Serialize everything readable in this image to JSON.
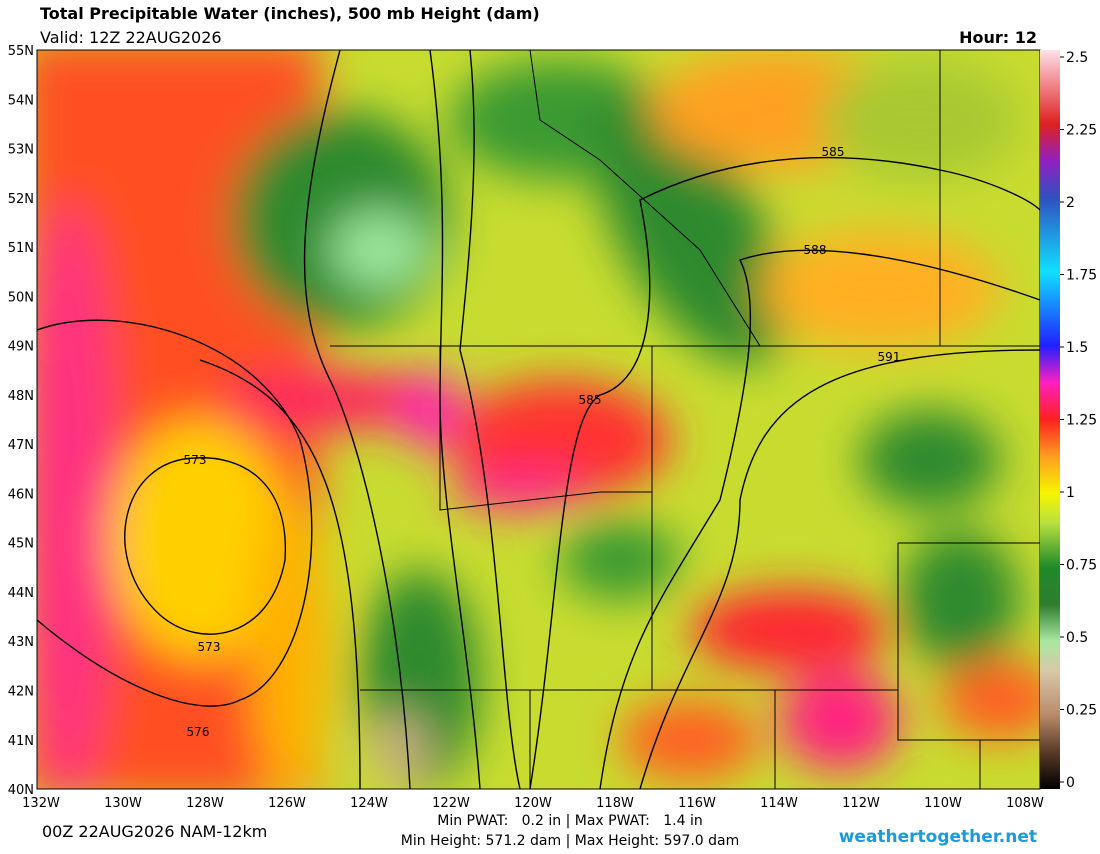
{
  "header": {
    "title": "Total Precipitable Water (inches), 500 mb Height (dam)",
    "valid": "Valid: 12Z 22AUG2026",
    "hour": "Hour: 12"
  },
  "map": {
    "lat_labels": [
      "55N",
      "54N",
      "53N",
      "52N",
      "51N",
      "50N",
      "49N",
      "48N",
      "47N",
      "46N",
      "45N",
      "44N",
      "43N",
      "42N",
      "41N",
      "40N"
    ],
    "lon_labels": [
      "132W",
      "130W",
      "128W",
      "126W",
      "124W",
      "122W",
      "120W",
      "118W",
      "116W",
      "114W",
      "112W",
      "110W",
      "108W"
    ],
    "contour_labels": [
      "585",
      "588",
      "591",
      "585",
      "573",
      "573",
      "576"
    ]
  },
  "colorbar": {
    "lim": [
      0,
      2.5
    ],
    "ticks": [
      2.5,
      2.25,
      2,
      1.75,
      1.5,
      1.25,
      1,
      0.75,
      0.5,
      0.25,
      0
    ]
  },
  "footer": {
    "run": "00Z 22AUG2026 NAM-12km",
    "stats_pwat": "Min PWAT:   0.2 in | Max PWAT:   1.4 in",
    "stats_height": "Min Height: 571.2 dam | Max Height: 597.0 dam",
    "site": "weathertogether.net"
  }
}
